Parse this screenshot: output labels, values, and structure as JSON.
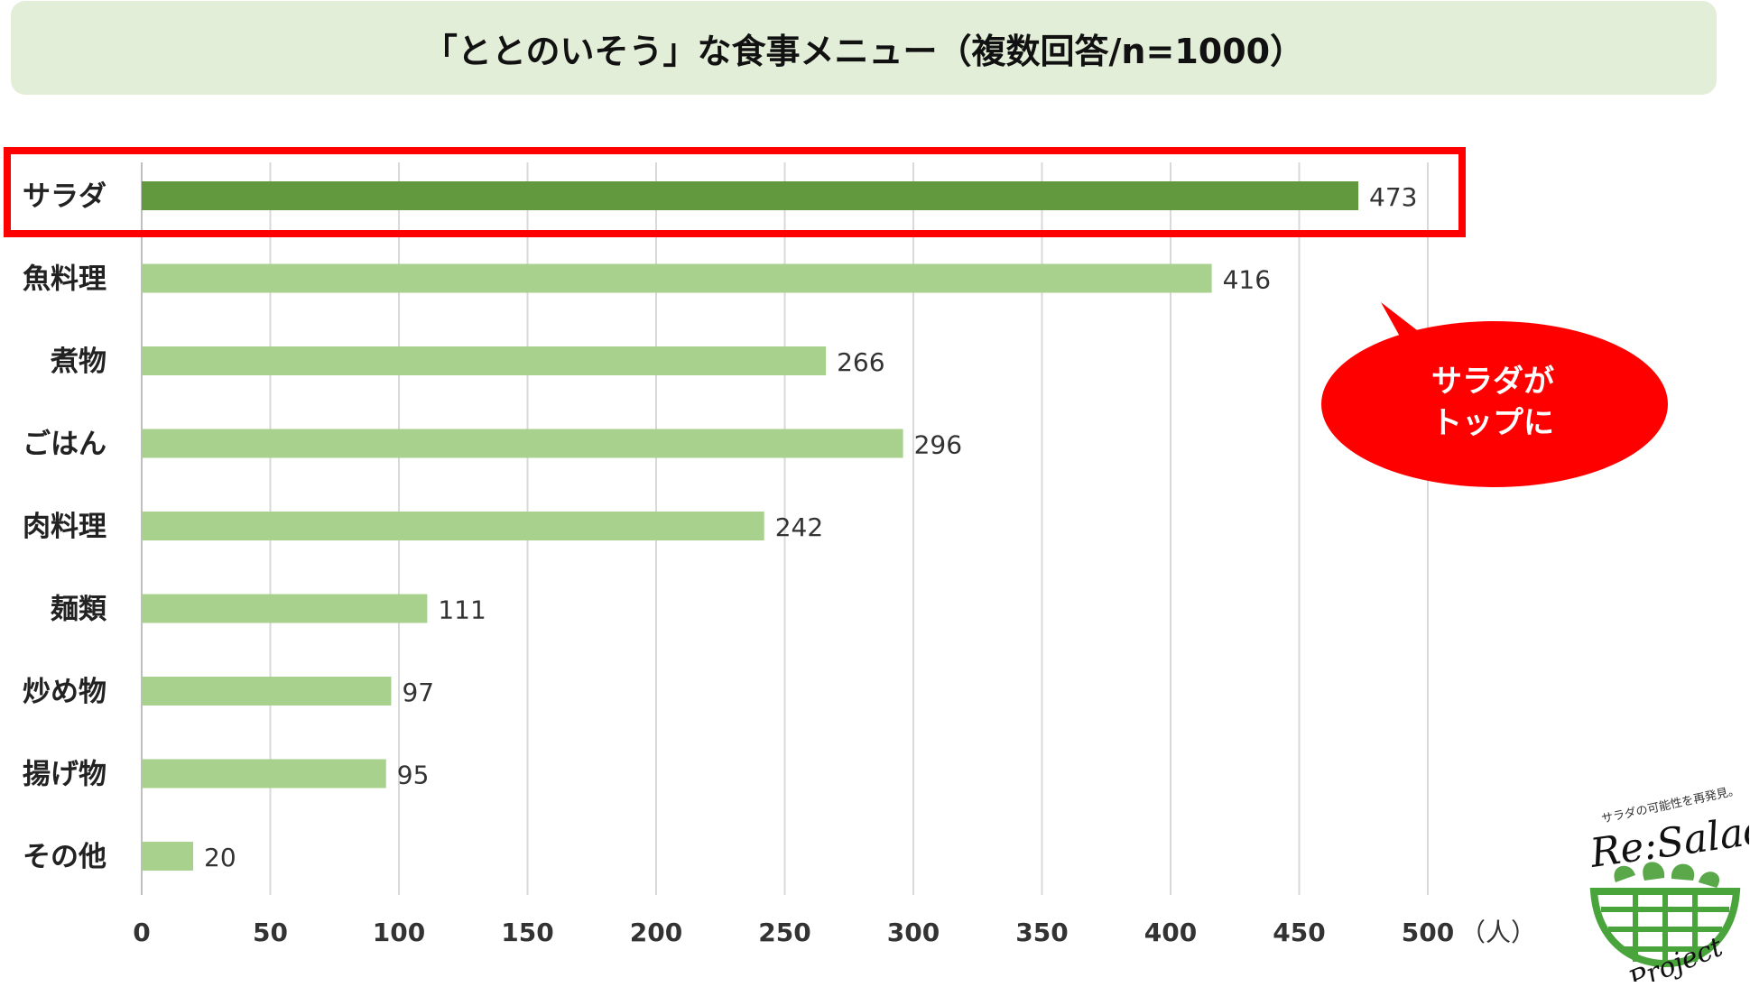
{
  "title": "「ととのいそう」な食事メニュー（複数回答/n=1000）",
  "callout": {
    "line1": "サラダが",
    "line2": "トップに"
  },
  "unit": "（人）",
  "logo": {
    "tagline": "サラダの可能性を再発見。",
    "name": "Re:Salad",
    "sub": "Project"
  },
  "colors": {
    "highlight_bar": "#62993e",
    "bar": "#a9d18e",
    "highlight_border": "#ff0000",
    "callout": "#ff0000",
    "title_bg": "#e3eed8"
  },
  "chart_data": {
    "type": "bar",
    "orientation": "horizontal",
    "categories": [
      "サラダ",
      "魚料理",
      "煮物",
      "ごはん",
      "肉料理",
      "麺類",
      "炒め物",
      "揚げ物",
      "その他"
    ],
    "values": [
      473,
      416,
      266,
      296,
      242,
      111,
      97,
      95,
      20
    ],
    "highlighted_category": "サラダ",
    "xlim": [
      0,
      500
    ],
    "xticks": [
      0,
      50,
      100,
      150,
      200,
      250,
      300,
      350,
      400,
      450,
      500
    ],
    "grid": "vertical"
  }
}
